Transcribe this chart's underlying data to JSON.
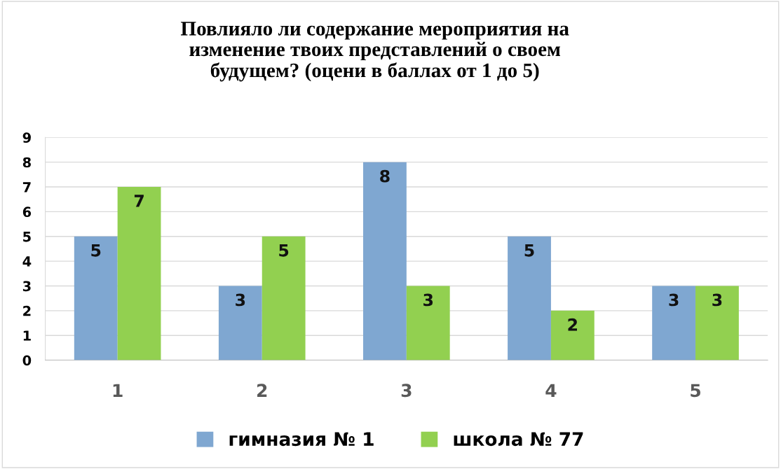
{
  "chart_data": {
    "type": "bar",
    "title": "Повлияло ли содержание мероприятия на\nизменение твоих представлений о своем\nбудущем? (оцени в баллах от 1 до 5)",
    "categories": [
      "1",
      "2",
      "3",
      "4",
      "5"
    ],
    "series": [
      {
        "name": "гимназия № 1",
        "color": "#7fa7d1",
        "values": [
          5,
          3,
          8,
          5,
          3
        ]
      },
      {
        "name": "школа № 77",
        "color": "#92d050",
        "values": [
          7,
          5,
          3,
          2,
          3
        ]
      }
    ],
    "ylim": [
      0,
      9
    ],
    "yticks": [
      0,
      1,
      2,
      3,
      4,
      5,
      6,
      7,
      8,
      9
    ],
    "grid": "y",
    "legend": "bottom",
    "data_labels": true
  }
}
